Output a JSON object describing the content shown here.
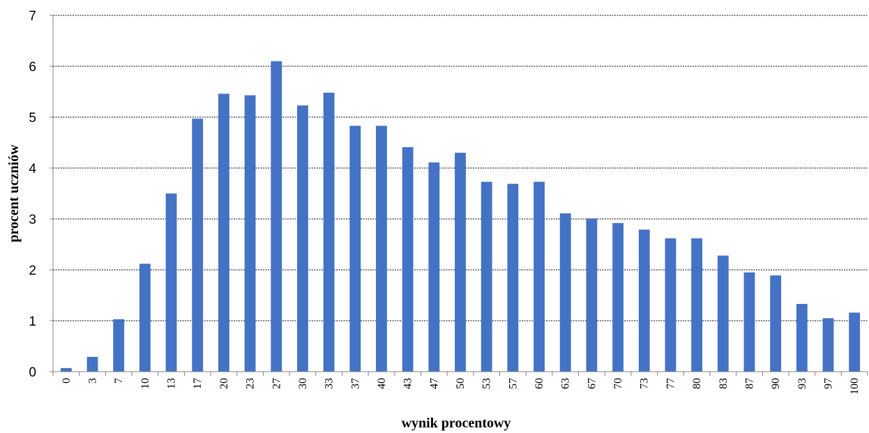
{
  "chart_data": {
    "type": "bar",
    "title": "",
    "xlabel": "wynik procentowy",
    "ylabel": "procent uczniów",
    "categories": [
      "0",
      "3",
      "7",
      "10",
      "13",
      "17",
      "20",
      "23",
      "27",
      "30",
      "33",
      "37",
      "40",
      "43",
      "47",
      "50",
      "53",
      "57",
      "60",
      "63",
      "67",
      "70",
      "73",
      "77",
      "80",
      "83",
      "87",
      "90",
      "93",
      "97",
      "100"
    ],
    "values": [
      0.07,
      0.29,
      1.03,
      2.12,
      3.5,
      4.97,
      5.46,
      5.43,
      6.1,
      5.23,
      5.48,
      4.83,
      4.83,
      4.41,
      4.11,
      4.3,
      3.73,
      3.69,
      3.73,
      3.11,
      3.01,
      2.92,
      2.79,
      2.62,
      2.62,
      2.28,
      1.95,
      1.89,
      1.33,
      1.05,
      1.16
    ],
    "ylim": [
      0,
      7
    ],
    "yticks": [
      0,
      1,
      2,
      3,
      4,
      5,
      6,
      7
    ],
    "grid": true,
    "bar_color": "#4472C4",
    "grid_color": "#000000"
  }
}
